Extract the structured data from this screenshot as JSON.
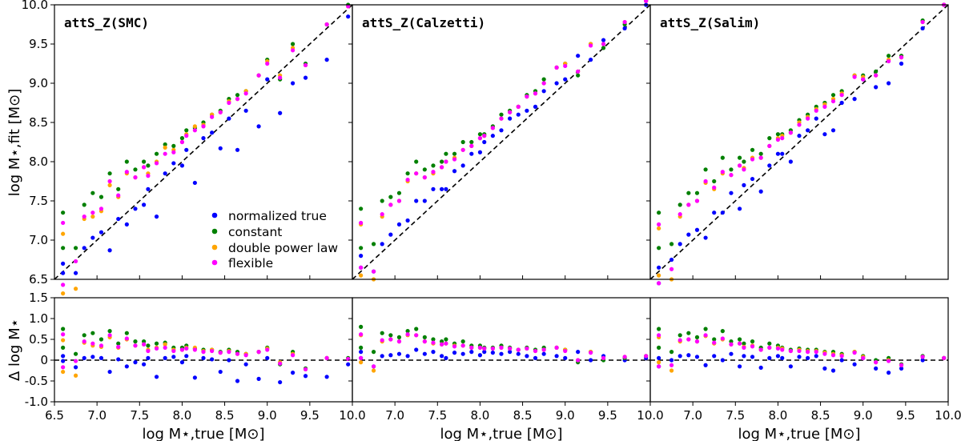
{
  "chart_data": {
    "type": "scatter",
    "layout": "3 columns x 2 rows, shared axes",
    "ylabel_top": "log M⋆,fit [M⊙]",
    "ylabel_bottom": "Δ log M⋆",
    "xlabel": "log M⋆,true [M⊙]",
    "xlim": [
      6.5,
      10.0
    ],
    "ylim_top": [
      6.5,
      10.0
    ],
    "ylim_bottom": [
      -1.0,
      1.5
    ],
    "xticks": [
      "6.5",
      "7.0",
      "7.5",
      "8.0",
      "8.5",
      "9.0",
      "9.5",
      "10.0"
    ],
    "yticks_top": [
      "6.5",
      "7.0",
      "7.5",
      "8.0",
      "8.5",
      "9.0",
      "9.5",
      "10.0"
    ],
    "yticks_bottom": [
      "-1.0",
      "-0.5",
      "0",
      "0.5",
      "1.0",
      "1.5"
    ],
    "reference_lines": "dashed black one-to-one line (top), dashed zero line (bottom)",
    "legend": {
      "placement": "lower-right of first panel",
      "entries": [
        "normalized true",
        "constant",
        "double power law",
        "flexible"
      ]
    },
    "colors": {
      "normalized true": "#0000ff",
      "constant": "#008000",
      "double power law": "#ffa500",
      "flexible": "#ff00ff"
    },
    "top_y_is": "x + delta",
    "x": [
      6.6,
      6.6,
      6.75,
      6.85,
      6.95,
      7.05,
      7.15,
      7.25,
      7.35,
      7.45,
      7.55,
      7.6,
      7.7,
      7.8,
      7.9,
      8.0,
      8.05,
      8.15,
      8.25,
      8.35,
      8.45,
      8.55,
      8.65,
      8.75,
      8.9,
      9.0,
      9.15,
      9.3,
      9.45,
      9.7,
      9.95
    ],
    "panels": [
      {
        "title": "attS_Z(SMC)",
        "delta": {
          "normalized true": [
            0.1,
            -0.02,
            -0.17,
            0.05,
            0.08,
            0.05,
            -0.28,
            0.02,
            -0.15,
            -0.05,
            -0.1,
            0.05,
            -0.4,
            0.05,
            0.08,
            -0.05,
            0.1,
            -0.42,
            0.05,
            0.02,
            -0.28,
            0.0,
            -0.5,
            -0.1,
            -0.45,
            0.05,
            -0.53,
            -0.3,
            -0.38,
            -0.4,
            -0.1
          ],
          "constant": [
            0.75,
            0.3,
            0.15,
            0.6,
            0.65,
            0.5,
            0.7,
            0.4,
            0.65,
            0.45,
            0.45,
            0.35,
            0.4,
            0.42,
            0.3,
            0.3,
            0.35,
            0.28,
            0.25,
            0.25,
            0.2,
            0.25,
            0.2,
            0.15,
            0.2,
            0.3,
            -0.1,
            0.2,
            -0.2,
            0.05,
            0.05
          ],
          "double power law": [
            0.48,
            -0.28,
            -0.37,
            0.42,
            0.35,
            0.32,
            0.55,
            0.3,
            0.5,
            0.35,
            0.38,
            0.25,
            0.3,
            0.38,
            0.25,
            0.25,
            0.3,
            0.3,
            0.22,
            0.25,
            0.18,
            0.22,
            0.15,
            0.15,
            0.2,
            0.28,
            -0.05,
            0.15,
            -0.22,
            0.05,
            0.03
          ],
          "flexible": [
            0.62,
            -0.17,
            -0.02,
            0.45,
            0.4,
            0.35,
            0.6,
            0.32,
            0.52,
            0.35,
            0.38,
            0.22,
            0.28,
            0.3,
            0.22,
            0.25,
            0.28,
            0.25,
            0.2,
            0.22,
            0.18,
            0.2,
            0.15,
            0.12,
            0.2,
            0.25,
            -0.08,
            0.12,
            -0.22,
            0.05,
            0.03
          ]
        }
      },
      {
        "title": "attS_Z(Calzetti)",
        "delta": {
          "normalized true": [
            0.2,
            0.05,
            -0.15,
            0.1,
            0.12,
            0.15,
            0.1,
            0.25,
            0.15,
            0.2,
            0.1,
            0.05,
            0.18,
            0.15,
            0.2,
            0.12,
            0.2,
            0.18,
            0.15,
            0.2,
            0.15,
            0.1,
            0.05,
            0.15,
            0.1,
            0.05,
            0.2,
            0.0,
            0.1,
            0.0,
            0.05
          ],
          "constant": [
            0.8,
            0.3,
            0.2,
            0.65,
            0.6,
            0.55,
            0.7,
            0.75,
            0.55,
            0.5,
            0.45,
            0.5,
            0.4,
            0.45,
            0.35,
            0.35,
            0.3,
            0.3,
            0.35,
            0.3,
            0.25,
            0.3,
            0.25,
            0.3,
            0.3,
            0.25,
            -0.05,
            0.2,
            0.0,
            0.05,
            0.1
          ],
          "double power law": [
            0.6,
            -0.05,
            -0.25,
            0.45,
            0.5,
            0.45,
            0.6,
            0.6,
            0.45,
            0.4,
            0.38,
            0.4,
            0.35,
            0.35,
            0.3,
            0.3,
            0.28,
            0.28,
            0.3,
            0.28,
            0.25,
            0.28,
            0.22,
            0.25,
            0.3,
            0.25,
            0.0,
            0.2,
            0.05,
            0.08,
            0.1
          ],
          "flexible": [
            0.62,
            0.05,
            -0.15,
            0.48,
            0.5,
            0.45,
            0.62,
            0.6,
            0.45,
            0.42,
            0.38,
            0.4,
            0.33,
            0.35,
            0.3,
            0.3,
            0.28,
            0.28,
            0.3,
            0.28,
            0.25,
            0.28,
            0.22,
            0.25,
            0.3,
            0.22,
            0.0,
            0.18,
            0.05,
            0.08,
            0.1
          ]
        }
      },
      {
        "title": "attS_Z(Salim)",
        "delta": {
          "normalized true": [
            0.05,
            -0.15,
            0.0,
            0.1,
            0.12,
            0.08,
            -0.12,
            0.1,
            0.0,
            0.15,
            -0.15,
            0.1,
            0.08,
            -0.18,
            0.05,
            0.1,
            0.05,
            -0.15,
            0.08,
            0.05,
            0.1,
            -0.2,
            -0.25,
            0.0,
            -0.1,
            0.05,
            -0.2,
            -0.3,
            -0.2,
            0.0,
            0.05
          ],
          "constant": [
            0.75,
            0.3,
            0.2,
            0.6,
            0.65,
            0.55,
            0.75,
            0.5,
            0.7,
            0.45,
            0.5,
            0.4,
            0.45,
            0.3,
            0.4,
            0.35,
            0.3,
            0.25,
            0.28,
            0.25,
            0.25,
            0.2,
            0.2,
            0.15,
            0.2,
            0.1,
            0.0,
            0.05,
            -0.1,
            0.1,
            0.05
          ],
          "double power law": [
            0.55,
            -0.05,
            -0.25,
            0.45,
            0.5,
            0.45,
            0.58,
            0.4,
            0.5,
            0.38,
            0.4,
            0.32,
            0.35,
            0.25,
            0.3,
            0.3,
            0.28,
            0.22,
            0.25,
            0.22,
            0.22,
            0.18,
            0.15,
            0.12,
            0.2,
            0.08,
            -0.05,
            0.0,
            -0.12,
            0.08,
            0.05
          ],
          "flexible": [
            0.6,
            -0.15,
            -0.12,
            0.48,
            0.5,
            0.45,
            0.6,
            0.42,
            0.52,
            0.38,
            0.4,
            0.3,
            0.33,
            0.25,
            0.3,
            0.28,
            0.25,
            0.22,
            0.22,
            0.2,
            0.2,
            0.15,
            0.12,
            0.1,
            0.18,
            0.05,
            -0.05,
            -0.02,
            -0.12,
            0.08,
            0.05
          ]
        }
      }
    ]
  }
}
